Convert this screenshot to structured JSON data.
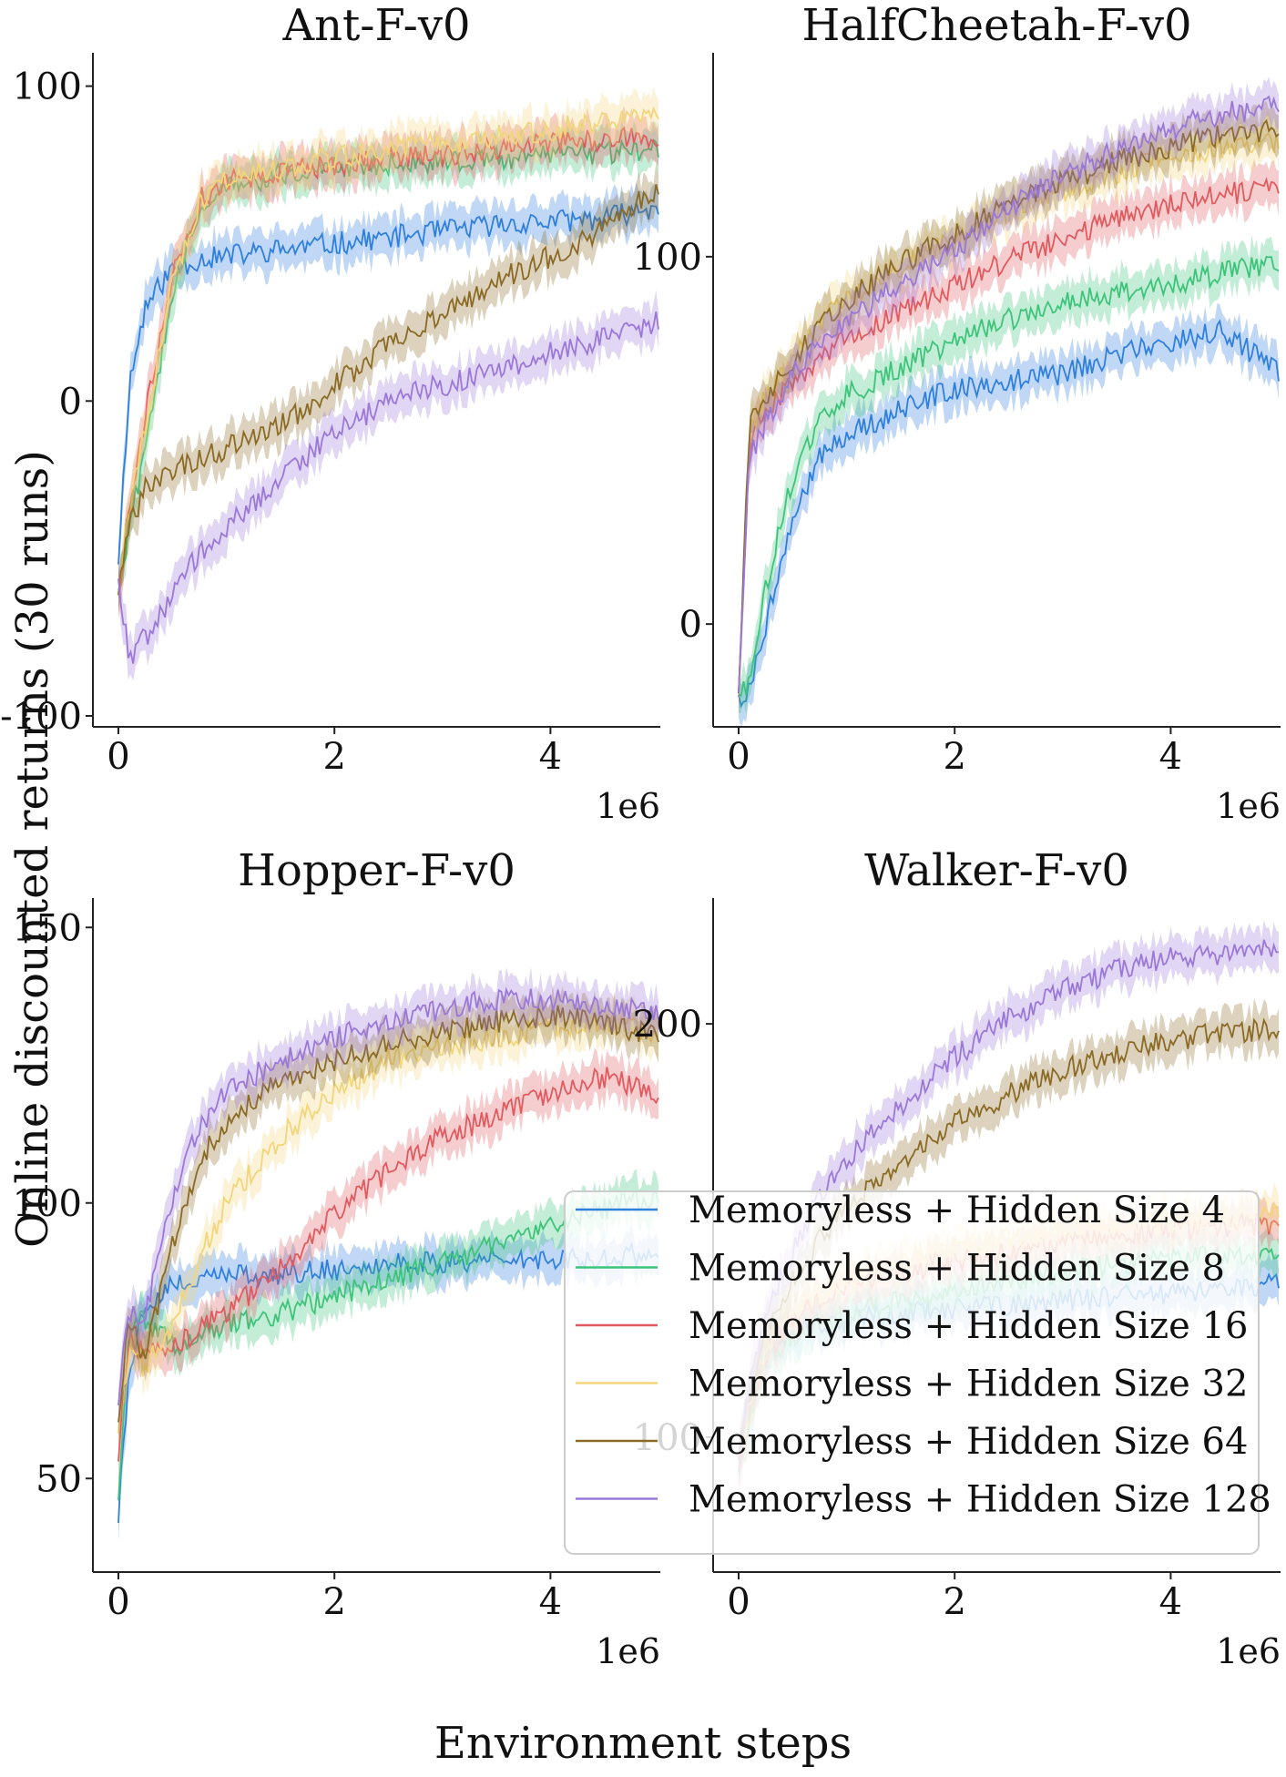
{
  "figure": {
    "xlabel": "Environment steps",
    "ylabel": "Online discounted returns (30 runs)"
  },
  "legend": {
    "placement": "lower-right of Hopper-F-v0 panel, overlapping Walker-F-v0",
    "entries": [
      "Memoryless + Hidden Size 4",
      "Memoryless + Hidden Size 8",
      "Memoryless + Hidden Size 16",
      "Memoryless + Hidden Size 32",
      "Memoryless + Hidden Size 64",
      "Memoryless + Hidden Size 128"
    ]
  },
  "series_colors": {
    "Memoryless + Hidden Size 4": "#2f7fde",
    "Memoryless + Hidden Size 8": "#3dc47a",
    "Memoryless + Hidden Size 16": "#e05a5f",
    "Memoryless + Hidden Size 32": "#f3d57a",
    "Memoryless + Hidden Size 64": "#8a6a24",
    "Memoryless + Hidden Size 128": "#9b78d8"
  },
  "chart_data": [
    {
      "type": "line",
      "title": "Ant-F-v0",
      "x_multiplier": "1e6",
      "xlim": [
        0,
        5000000
      ],
      "ylim": [
        -100,
        110
      ],
      "xticks": [
        "0",
        "2",
        "4"
      ],
      "yticks": [
        "-100",
        "0",
        "100"
      ],
      "x": [
        0,
        100000,
        250000,
        500000,
        750000,
        1000000,
        1500000,
        2000000,
        2500000,
        3000000,
        3500000,
        4000000,
        4500000,
        5000000
      ],
      "series": [
        {
          "name": "Memoryless + Hidden Size 4",
          "values": [
            -50,
            5,
            30,
            42,
            45,
            46,
            48,
            50,
            52,
            54,
            56,
            57,
            58,
            62
          ]
        },
        {
          "name": "Memoryless + Hidden Size 8",
          "values": [
            -60,
            -40,
            -15,
            35,
            62,
            68,
            72,
            74,
            75,
            76,
            77,
            78,
            79,
            80
          ]
        },
        {
          "name": "Memoryless + Hidden Size 16",
          "values": [
            -60,
            -35,
            -5,
            40,
            64,
            70,
            73,
            75,
            77,
            78,
            80,
            82,
            83,
            84
          ]
        },
        {
          "name": "Memoryless + Hidden Size 32",
          "values": [
            -60,
            -35,
            -8,
            38,
            63,
            70,
            74,
            77,
            80,
            82,
            84,
            86,
            89,
            92
          ]
        },
        {
          "name": "Memoryless + Hidden Size 64",
          "values": [
            -60,
            -40,
            -28,
            -22,
            -18,
            -15,
            -8,
            5,
            18,
            28,
            38,
            46,
            55,
            68
          ]
        },
        {
          "name": "Memoryless + Hidden Size 128",
          "values": [
            -55,
            -82,
            -75,
            -62,
            -48,
            -40,
            -25,
            -10,
            0,
            5,
            10,
            15,
            20,
            25
          ]
        }
      ]
    },
    {
      "type": "line",
      "title": "HalfCheetah-F-v0",
      "x_multiplier": "1e6",
      "xlim": [
        0,
        5000000
      ],
      "ylim": [
        -25,
        155
      ],
      "xticks": [
        "0",
        "2",
        "4"
      ],
      "yticks": [
        "0",
        "100"
      ],
      "x": [
        0,
        100000,
        250000,
        500000,
        750000,
        1000000,
        1500000,
        2000000,
        2500000,
        3000000,
        3500000,
        4000000,
        4500000,
        5000000
      ],
      "series": [
        {
          "name": "Memoryless + Hidden Size 4",
          "values": [
            -20,
            -18,
            0,
            28,
            45,
            52,
            58,
            64,
            66,
            68,
            73,
            77,
            80,
            68
          ]
        },
        {
          "name": "Memoryless + Hidden Size 8",
          "values": [
            -20,
            -15,
            10,
            40,
            55,
            62,
            70,
            77,
            83,
            88,
            90,
            92,
            96,
            98
          ]
        },
        {
          "name": "Memoryless + Hidden Size 16",
          "values": [
            -20,
            50,
            58,
            65,
            72,
            78,
            85,
            92,
            99,
            105,
            110,
            114,
            117,
            119
          ]
        },
        {
          "name": "Memoryless + Hidden Size 32",
          "values": [
            -20,
            52,
            62,
            72,
            82,
            88,
            97,
            105,
            112,
            118,
            123,
            127,
            130,
            131
          ]
        },
        {
          "name": "Memoryless + Hidden Size 64",
          "values": [
            -20,
            55,
            62,
            72,
            82,
            88,
            98,
            106,
            114,
            120,
            126,
            130,
            133,
            135
          ]
        },
        {
          "name": "Memoryless + Hidden Size 128",
          "values": [
            -20,
            45,
            55,
            68,
            76,
            82,
            93,
            102,
            113,
            122,
            129,
            135,
            139,
            141
          ]
        }
      ]
    },
    {
      "type": "line",
      "title": "Hopper-F-v0",
      "x_multiplier": "1e6",
      "xlim": [
        0,
        5000000
      ],
      "ylim": [
        35,
        155
      ],
      "xticks": [
        "0",
        "2",
        "4"
      ],
      "yticks": [
        "50",
        "100",
        "150"
      ],
      "x": [
        0,
        100000,
        250000,
        500000,
        750000,
        1000000,
        1500000,
        2000000,
        2500000,
        3000000,
        3500000,
        4000000,
        4500000,
        5000000
      ],
      "series": [
        {
          "name": "Memoryless + Hidden Size 4",
          "values": [
            44,
            70,
            82,
            85,
            86,
            87,
            87,
            88,
            89,
            89,
            90,
            90,
            90,
            91
          ]
        },
        {
          "name": "Memoryless + Hidden Size 8",
          "values": [
            48,
            78,
            79,
            74,
            76,
            78,
            80,
            83,
            86,
            89,
            93,
            96,
            99,
            101
          ]
        },
        {
          "name": "Memoryless + Hidden Size 16",
          "values": [
            55,
            76,
            72,
            74,
            77,
            80,
            88,
            98,
            106,
            112,
            116,
            120,
            123,
            120
          ]
        },
        {
          "name": "Memoryless + Hidden Size 32",
          "values": [
            60,
            74,
            70,
            78,
            90,
            100,
            112,
            120,
            126,
            128,
            130,
            132,
            133,
            131
          ]
        },
        {
          "name": "Memoryless + Hidden Size 64",
          "values": [
            62,
            78,
            72,
            92,
            108,
            115,
            122,
            126,
            129,
            131,
            133,
            134,
            133,
            130
          ]
        },
        {
          "name": "Memoryless + Hidden Size 128",
          "values": [
            65,
            80,
            80,
            100,
            114,
            120,
            126,
            130,
            133,
            135,
            137,
            137,
            136,
            134
          ]
        }
      ]
    },
    {
      "type": "line",
      "title": "Walker-F-v0",
      "x_multiplier": "1e6",
      "xlim": [
        0,
        5000000
      ],
      "ylim": [
        70,
        230
      ],
      "xticks": [
        "0",
        "2",
        "4"
      ],
      "yticks": [
        "100",
        "200"
      ],
      "x": [
        0,
        100000,
        250000,
        500000,
        750000,
        1000000,
        1500000,
        2000000,
        2500000,
        3000000,
        3500000,
        4000000,
        4500000,
        5000000
      ],
      "series": [
        {
          "name": "Memoryless + Hidden Size 4",
          "values": [
            95,
            108,
            120,
            125,
            127,
            128,
            130,
            131,
            132,
            133,
            134,
            135,
            136,
            137
          ]
        },
        {
          "name": "Memoryless + Hidden Size 8",
          "values": [
            92,
            105,
            118,
            124,
            128,
            130,
            133,
            136,
            138,
            140,
            142,
            143,
            144,
            145
          ]
        },
        {
          "name": "Memoryless + Hidden Size 16",
          "values": [
            93,
            106,
            120,
            128,
            133,
            136,
            140,
            143,
            145,
            147,
            149,
            150,
            151,
            152
          ]
        },
        {
          "name": "Memoryless + Hidden Size 32",
          "values": [
            95,
            108,
            122,
            130,
            135,
            138,
            142,
            146,
            148,
            150,
            151,
            152,
            153,
            154
          ]
        },
        {
          "name": "Memoryless + Hidden Size 64",
          "values": [
            95,
            110,
            125,
            138,
            148,
            156,
            167,
            176,
            183,
            189,
            193,
            196,
            198,
            199
          ]
        },
        {
          "name": "Memoryless + Hidden Size 128",
          "values": [
            95,
            112,
            130,
            145,
            158,
            167,
            180,
            192,
            201,
            208,
            213,
            216,
            217,
            218
          ]
        }
      ]
    }
  ]
}
